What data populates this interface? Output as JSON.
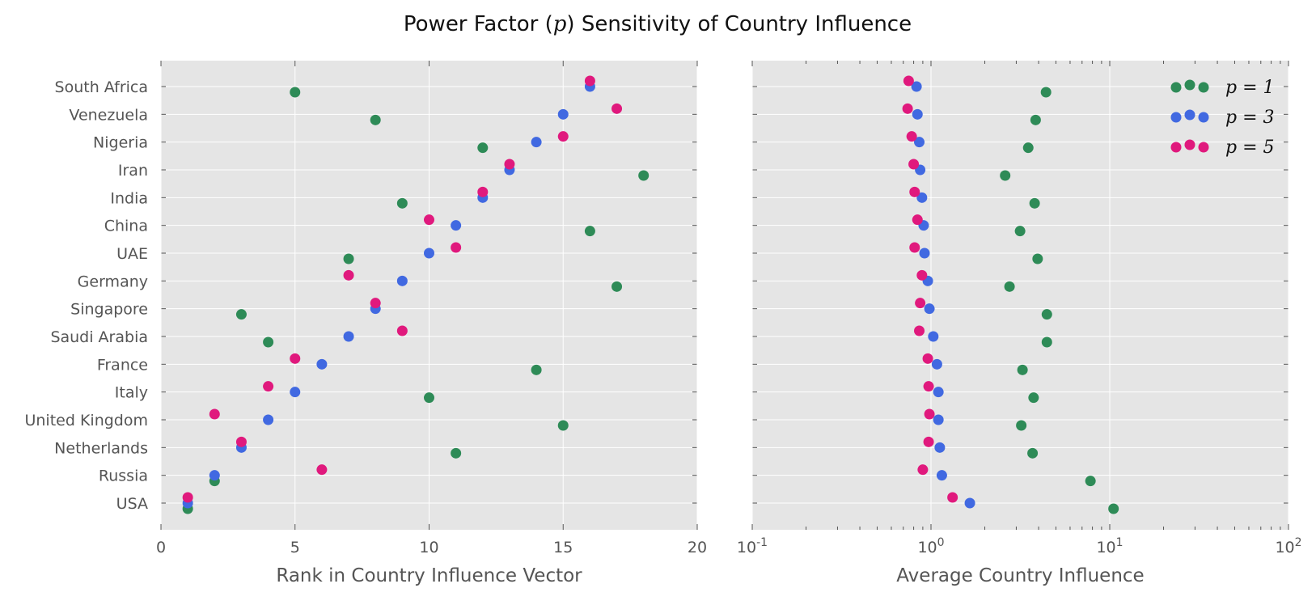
{
  "chart_data": [
    {
      "type": "scatter",
      "title_pre": "Power Factor (",
      "title_var": "p",
      "title_post": ") Sensitivity of Country Influence",
      "categories": [
        "USA",
        "Russia",
        "Netherlands",
        "United Kingdom",
        "Italy",
        "France",
        "Saudi Arabia",
        "Singapore",
        "Germany",
        "UAE",
        "China",
        "India",
        "Iran",
        "Nigeria",
        "Venezuela",
        "South Africa"
      ],
      "xlabel": "Rank in Country Influence Vector",
      "xlim": [
        0,
        20
      ],
      "xticks": [
        0,
        5,
        10,
        15,
        20
      ],
      "grid": true,
      "series": [
        {
          "color": "#2e8b57",
          "values": [
            1,
            2,
            11,
            15,
            10,
            14,
            4,
            3,
            17,
            7,
            16,
            9,
            18,
            12,
            8,
            5
          ]
        },
        {
          "color": "#4169e1",
          "values": [
            1,
            2,
            3,
            4,
            5,
            6,
            7,
            8,
            9,
            10,
            11,
            12,
            13,
            14,
            15,
            16
          ]
        },
        {
          "color": "#e0197d",
          "values": [
            1,
            6,
            3,
            2,
            4,
            5,
            9,
            8,
            7,
            11,
            10,
            12,
            13,
            15,
            17,
            16
          ]
        }
      ]
    },
    {
      "type": "scatter",
      "categories": [
        "USA",
        "Russia",
        "Netherlands",
        "United Kingdom",
        "Italy",
        "France",
        "Saudi Arabia",
        "Singapore",
        "Germany",
        "UAE",
        "China",
        "India",
        "Iran",
        "Nigeria",
        "Venezuela",
        "South Africa"
      ],
      "xlabel": "Average Country Influence",
      "xscale": "log",
      "xlim": [
        0.1,
        100
      ],
      "xtick_labels": [
        {
          "base": "10",
          "exp": "-1"
        },
        {
          "base": "10",
          "exp": "0"
        },
        {
          "base": "10",
          "exp": "1"
        },
        {
          "base": "10",
          "exp": "2"
        }
      ],
      "grid": true,
      "legend_position": "top-right",
      "series": [
        {
          "name": "p = 1",
          "color": "#2e8b57",
          "values": [
            10.5,
            7.8,
            3.7,
            3.2,
            3.75,
            3.25,
            4.45,
            4.45,
            2.75,
            3.95,
            3.15,
            3.8,
            2.6,
            3.5,
            3.85,
            4.4
          ]
        },
        {
          "name": "p = 3",
          "color": "#4169e1",
          "values": [
            1.65,
            1.15,
            1.12,
            1.1,
            1.1,
            1.08,
            1.03,
            0.98,
            0.96,
            0.92,
            0.91,
            0.89,
            0.87,
            0.86,
            0.84,
            0.83
          ]
        },
        {
          "name": "p = 5",
          "color": "#e0197d",
          "values": [
            1.32,
            0.9,
            0.97,
            0.98,
            0.97,
            0.96,
            0.86,
            0.87,
            0.89,
            0.81,
            0.84,
            0.81,
            0.8,
            0.78,
            0.74,
            0.75
          ]
        }
      ]
    }
  ]
}
